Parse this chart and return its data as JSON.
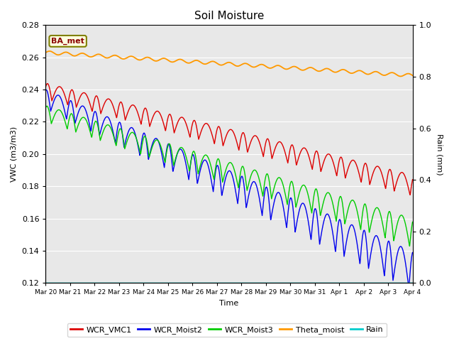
{
  "title": "Soil Moisture",
  "xlabel": "Time",
  "ylabel_left": "VWC (m3/m3)",
  "ylabel_right": "Rain (mm)",
  "ylim_left": [
    0.12,
    0.28
  ],
  "ylim_right": [
    0.0,
    1.0
  ],
  "yticks_left": [
    0.12,
    0.14,
    0.16,
    0.18,
    0.2,
    0.22,
    0.24,
    0.26,
    0.28
  ],
  "yticks_right": [
    0.0,
    0.2,
    0.4,
    0.6,
    0.8,
    1.0
  ],
  "bg_color": "#e8e8e8",
  "legend_labels": [
    "WCR_VMC1",
    "WCR_Moist2",
    "WCR_Moist3",
    "Theta_moist",
    "Rain"
  ],
  "legend_colors": [
    "#dd0000",
    "#0000ee",
    "#00cc00",
    "#ff9900",
    "#00cccc"
  ],
  "station_label": "BA_met",
  "n_days": 15,
  "tick_labels": [
    "Mar 20",
    "Mar 21",
    "Mar 22",
    "Mar 23",
    "Mar 24",
    "Mar 25",
    "Mar 26",
    "Mar 27",
    "Mar 28",
    "Mar 29",
    "Mar 30",
    "Mar 31",
    "Apr 1",
    "Apr 2",
    "Apr 3",
    "Apr 4"
  ]
}
